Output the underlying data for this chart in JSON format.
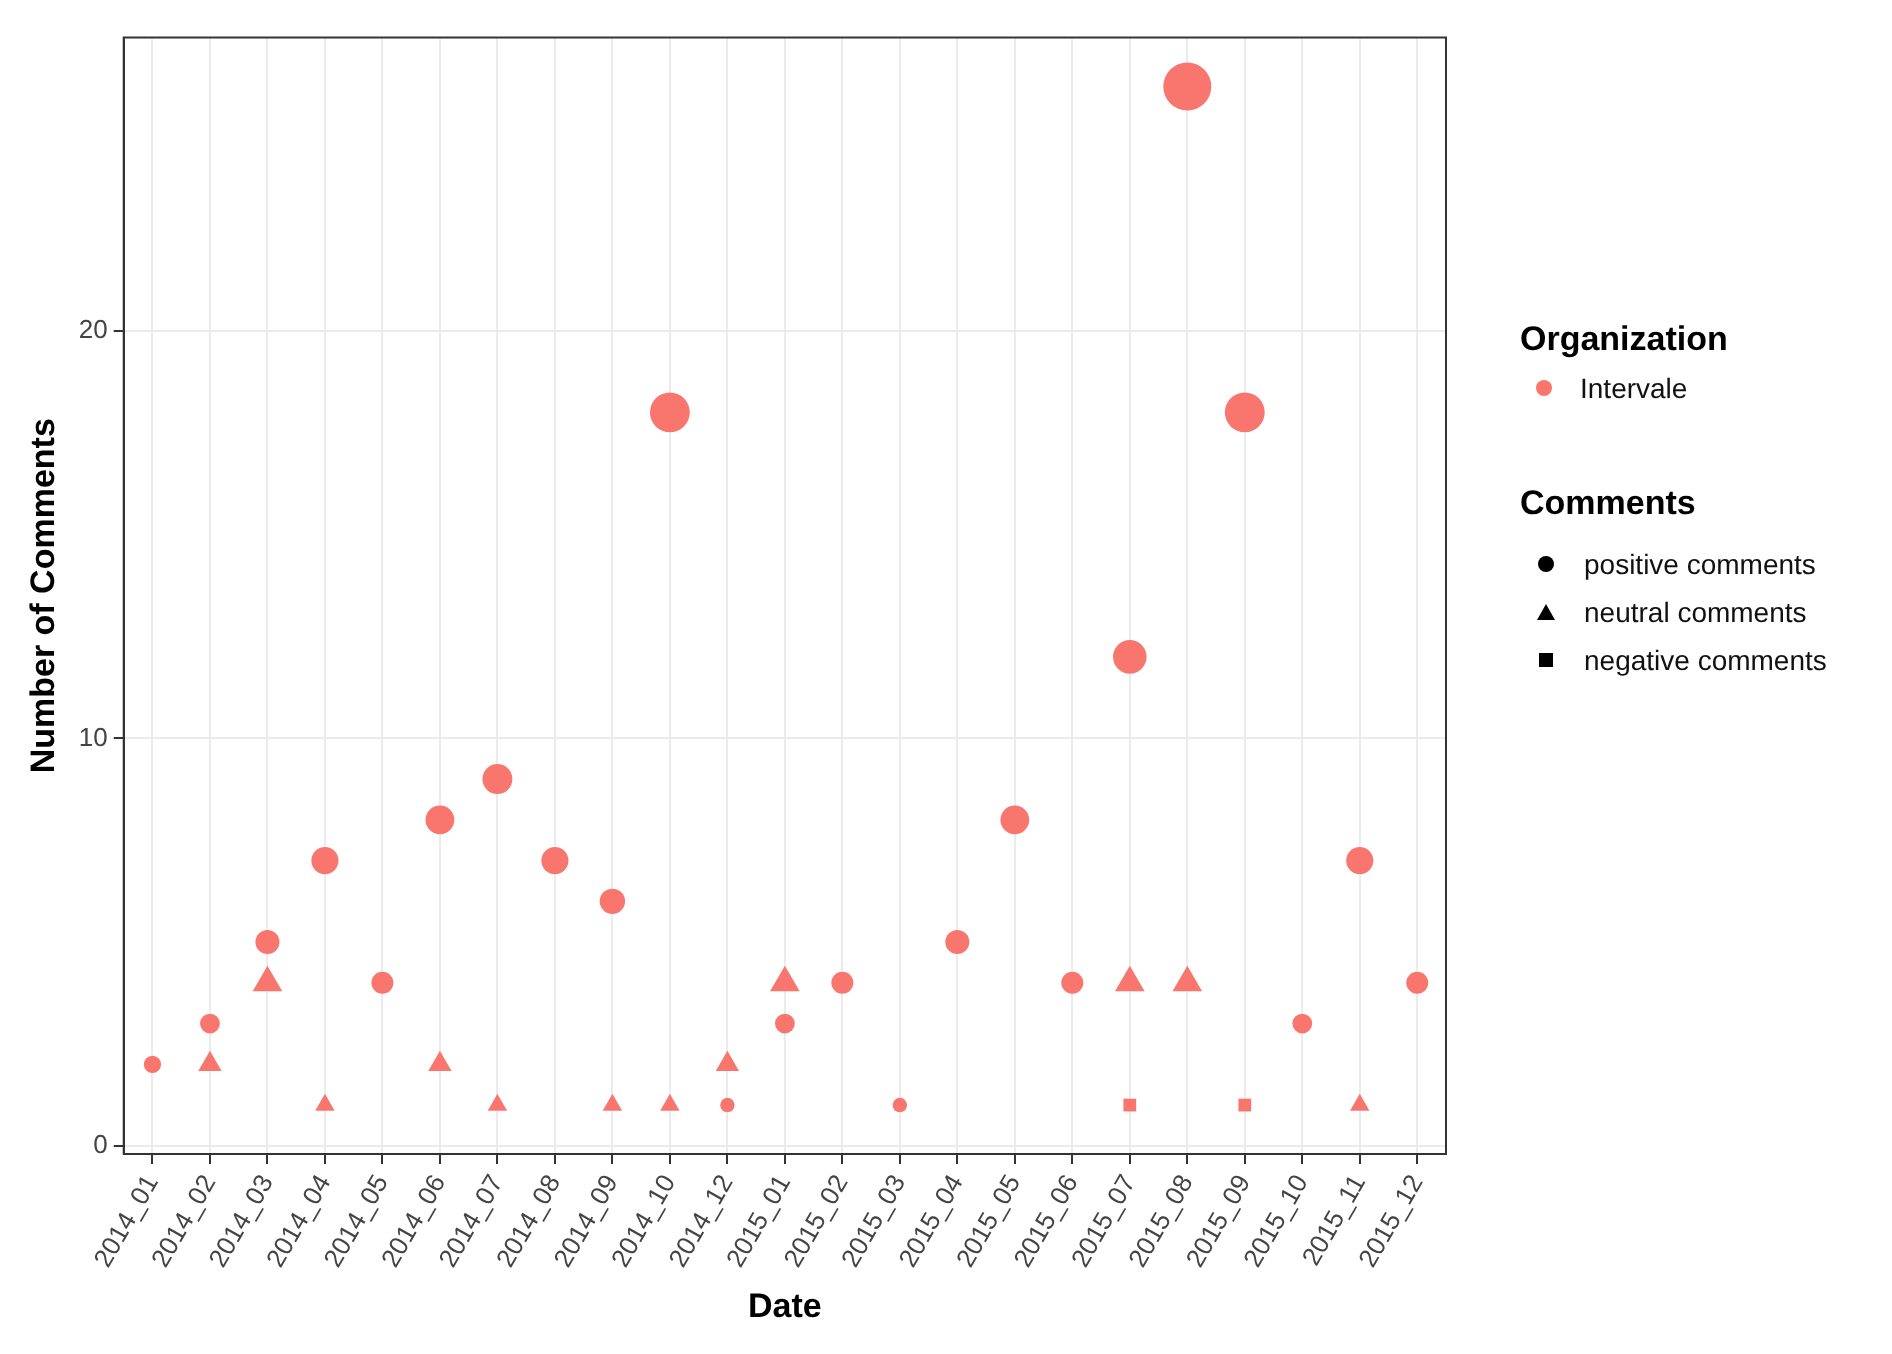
{
  "chart_data": {
    "type": "bubble",
    "xlabel": "Date",
    "ylabel": "Number of Comments",
    "legend_title": "Comments",
    "annotations": [
      "Organization",
      "Intervale"
    ],
    "categories": [
      "2014_01",
      "2014_02",
      "2014_03",
      "2014_04",
      "2014_05",
      "2014_06",
      "2014_07",
      "2014_08",
      "2014_09",
      "2014_10",
      "2014_12",
      "2015_01",
      "2015_02",
      "2015_03",
      "2015_04",
      "2015_05",
      "2015_06",
      "2015_07",
      "2015_08",
      "2015_09",
      "2015_10",
      "2015_11",
      "2015_12"
    ],
    "series": [
      {
        "name": "positive comments",
        "color": "#f8766d",
        "marker": "circle",
        "values": [
          2,
          3,
          5,
          7,
          4,
          8,
          9,
          7,
          6,
          18,
          1,
          3,
          4,
          1,
          5,
          8,
          4,
          12,
          26,
          18,
          3,
          7,
          4
        ],
        "sizes": [
          0.13,
          0.17,
          0.25,
          0.32,
          0.21,
          0.36,
          0.39,
          0.32,
          0.28,
          0.69,
          0.09,
          0.17,
          0.21,
          0.09,
          0.25,
          0.36,
          0.21,
          0.49,
          1,
          0.69,
          0.17,
          0.32,
          0.21
        ]
      },
      {
        "name": "neutral comments",
        "color": "#f8766d",
        "marker": "triangle",
        "values": [
          null,
          2,
          4,
          1,
          null,
          2,
          1,
          null,
          1,
          1,
          2,
          4,
          null,
          null,
          null,
          null,
          null,
          4,
          4,
          null,
          null,
          1,
          null
        ],
        "sizes": [
          null,
          0.13,
          0.21,
          0.09,
          null,
          0.13,
          0.09,
          null,
          0.09,
          0.09,
          0.13,
          0.21,
          null,
          null,
          null,
          null,
          null,
          0.21,
          0.21,
          null,
          null,
          0.09,
          null
        ]
      },
      {
        "name": "negative comments",
        "color": "#f8766d",
        "marker": "square",
        "values": [
          null,
          null,
          null,
          null,
          null,
          null,
          null,
          null,
          null,
          null,
          null,
          null,
          null,
          null,
          null,
          null,
          null,
          1,
          null,
          1,
          null,
          null,
          null
        ],
        "sizes": [
          null,
          null,
          null,
          null,
          null,
          null,
          null,
          null,
          null,
          null,
          null,
          null,
          null,
          null,
          null,
          null,
          null,
          0.09,
          null,
          0.09,
          null,
          null,
          null
        ]
      }
    ],
    "ylim": [
      -0.2,
      27.2
    ],
    "yticks": [
      0,
      10,
      20
    ],
    "grid": true,
    "legend": "right"
  }
}
